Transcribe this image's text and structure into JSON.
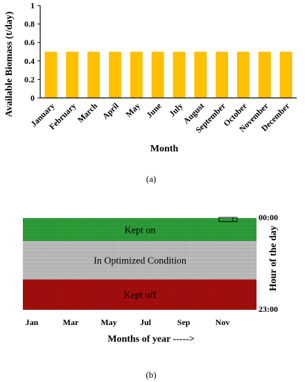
{
  "chart_data": [
    {
      "type": "bar",
      "panel_label": "(a)",
      "categories": [
        "January",
        "February",
        "March",
        "April",
        "May",
        "June",
        "July",
        "August",
        "September",
        "October",
        "November",
        "December"
      ],
      "values": [
        0.5,
        0.5,
        0.5,
        0.5,
        0.5,
        0.5,
        0.5,
        0.5,
        0.5,
        0.5,
        0.5,
        0.5
      ],
      "xlabel": "Month",
      "ylabel": "Available Biomass (t/day)",
      "ylim": [
        0,
        1
      ],
      "yticks": [
        "0",
        "0.2",
        "0.4",
        "0.6",
        "0.8",
        "1"
      ],
      "bar_color": "#FFC000",
      "grid": false
    },
    {
      "type": "heatmap",
      "panel_label": "(b)",
      "x_ticks": [
        "Jan",
        "Mar",
        "May",
        "Jul",
        "Sep",
        "Nov"
      ],
      "y_ticks": [
        "00:00",
        "23:00"
      ],
      "xlabel": "Months of year ----->",
      "ylabel": "Hour of the day",
      "bands": [
        {
          "label": "Kept on",
          "color": "#2E9E3A",
          "hours_fraction": 0.25
        },
        {
          "label": "In Optimized Condition",
          "color": "#BEBEBE",
          "hours_fraction": 0.42
        },
        {
          "label": "Kept off",
          "color": "#A50E0E",
          "hours_fraction": 0.33
        }
      ]
    }
  ]
}
